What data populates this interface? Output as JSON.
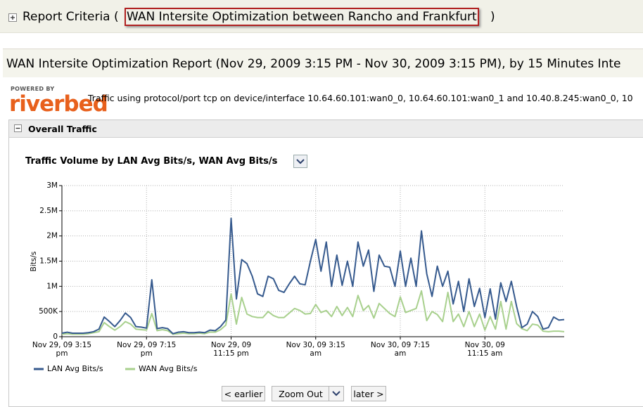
{
  "header": {
    "label": "Report Criteria (",
    "criteria": "WAN Intersite Optimization between Rancho and Frankfurt",
    "close": ")"
  },
  "report": {
    "title": "WAN Intersite Optimization Report (Nov 29, 2009 3:15 PM - Nov 30, 2009 3:15 PM), by 15 Minutes Inte",
    "powered_by": "POWERED BY",
    "logo": "riverbed",
    "description": "Traffic using protocol/port tcp on device/interface 10.64.60.101:wan0_0, 10.64.60.101:wan0_1 and 10.40.8.245:wan0_0, 10"
  },
  "section": {
    "title": "Overall Traffic"
  },
  "chart_data": {
    "type": "line",
    "title": "Traffic Volume by LAN Avg Bits/s, WAN Avg Bits/s",
    "ylabel": "Bits/s",
    "x": [
      0,
      0.25,
      0.5,
      0.75,
      1,
      1.25,
      1.5,
      1.75,
      2,
      2.25,
      2.5,
      2.75,
      3,
      3.25,
      3.5,
      3.75,
      4,
      4.25,
      4.5,
      4.75,
      5,
      5.25,
      5.5,
      5.75,
      6,
      6.25,
      6.5,
      6.75,
      7,
      7.25,
      7.5,
      7.75,
      8,
      8.25,
      8.5,
      8.75,
      9,
      9.25,
      9.5,
      9.75,
      10,
      10.25,
      10.5,
      10.75,
      11,
      11.25,
      11.5,
      11.75,
      12,
      12.25,
      12.5,
      12.75,
      13,
      13.25,
      13.5,
      13.75,
      14,
      14.25,
      14.5,
      14.75,
      15,
      15.25,
      15.5,
      15.75,
      16,
      16.25,
      16.5,
      16.75,
      17,
      17.25,
      17.5,
      17.75,
      18,
      18.25,
      18.5,
      18.75,
      19,
      19.25,
      19.5,
      19.75,
      20,
      20.25,
      20.5,
      20.75,
      21,
      21.25,
      21.5,
      21.75,
      22,
      22.25,
      22.5,
      22.75,
      23,
      23.25,
      23.5,
      23.75
    ],
    "xlim": [
      0,
      23.75
    ],
    "xticks": [
      {
        "value": 0,
        "label": "Nov 29, 09 3:15 pm"
      },
      {
        "value": 4,
        "label": "Nov 29, 09 7:15 pm"
      },
      {
        "value": 8,
        "label": "Nov 29, 09 11:15 pm"
      },
      {
        "value": 12,
        "label": "Nov 30, 09 3:15 am"
      },
      {
        "value": 16,
        "label": "Nov 30, 09 7:15 am"
      },
      {
        "value": 20,
        "label": "Nov 30, 09 11:15 am"
      }
    ],
    "ylim": [
      0,
      3000000
    ],
    "yticks": [
      0,
      {
        "value": 500000,
        "label": "500K"
      },
      {
        "value": 1000000,
        "label": "1M"
      },
      {
        "value": 1500000,
        "label": "1.5M"
      },
      {
        "value": 2000000,
        "label": "2M"
      },
      {
        "value": 2500000,
        "label": "2.5M"
      },
      {
        "value": 3000000,
        "label": "3M"
      }
    ],
    "grid": true,
    "legend": "bottom-left",
    "series": [
      {
        "name": "LAN Avg Bits/s",
        "color": "#365a8e",
        "values": [
          70000,
          90000,
          70000,
          70000,
          70000,
          80000,
          100000,
          150000,
          390000,
          300000,
          200000,
          320000,
          470000,
          380000,
          200000,
          190000,
          170000,
          1130000,
          160000,
          180000,
          160000,
          60000,
          90000,
          100000,
          80000,
          80000,
          90000,
          80000,
          130000,
          120000,
          200000,
          330000,
          2350000,
          750000,
          1530000,
          1450000,
          1200000,
          850000,
          800000,
          1200000,
          1150000,
          920000,
          880000,
          1050000,
          1200000,
          1050000,
          1030000,
          1500000,
          1930000,
          1300000,
          1880000,
          1000000,
          1620000,
          1020000,
          1500000,
          1000000,
          1880000,
          1400000,
          1720000,
          900000,
          1620000,
          1400000,
          1380000,
          1000000,
          1700000,
          1000000,
          1560000,
          1000000,
          2100000,
          1250000,
          800000,
          1400000,
          1000000,
          1300000,
          650000,
          1100000,
          500000,
          1150000,
          600000,
          960000,
          380000,
          950000,
          350000,
          1070000,
          700000,
          1100000,
          600000,
          180000,
          250000,
          500000,
          400000,
          150000,
          180000,
          390000,
          330000,
          340000
        ]
      },
      {
        "name": "WAN Avg Bits/s",
        "color": "#a8d08d",
        "values": [
          50000,
          60000,
          50000,
          50000,
          50000,
          60000,
          80000,
          100000,
          280000,
          200000,
          130000,
          200000,
          300000,
          250000,
          150000,
          140000,
          130000,
          460000,
          120000,
          140000,
          120000,
          50000,
          60000,
          70000,
          60000,
          60000,
          70000,
          60000,
          90000,
          90000,
          140000,
          230000,
          850000,
          250000,
          780000,
          450000,
          400000,
          380000,
          380000,
          500000,
          420000,
          380000,
          380000,
          470000,
          560000,
          520000,
          450000,
          460000,
          640000,
          480000,
          520000,
          400000,
          600000,
          420000,
          580000,
          400000,
          820000,
          520000,
          620000,
          370000,
          660000,
          560000,
          460000,
          400000,
          790000,
          480000,
          520000,
          560000,
          910000,
          320000,
          500000,
          440000,
          300000,
          880000,
          300000,
          450000,
          200000,
          500000,
          200000,
          450000,
          130000,
          400000,
          150000,
          700000,
          150000,
          700000,
          260000,
          160000,
          120000,
          250000,
          230000,
          110000,
          100000,
          110000,
          110000,
          100000
        ]
      }
    ]
  },
  "controls": {
    "earlier": "< earlier",
    "zoom": "Zoom Out",
    "later": "later >"
  }
}
